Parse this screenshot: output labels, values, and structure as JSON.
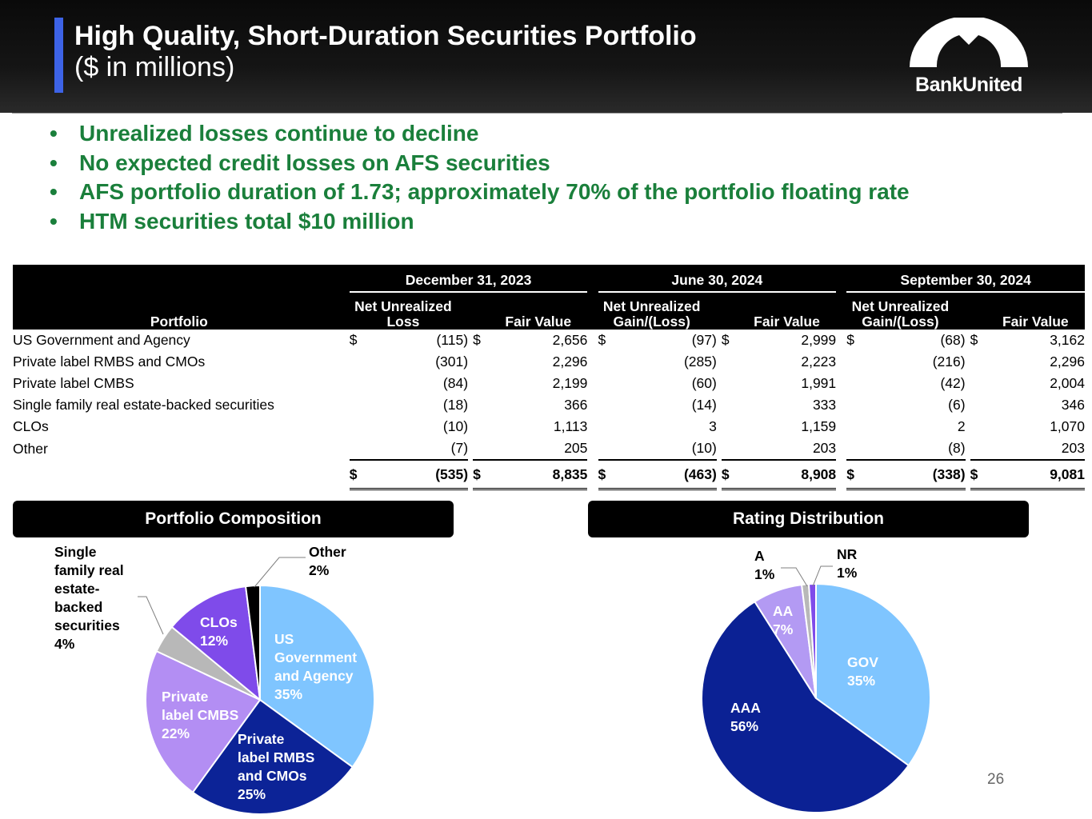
{
  "header": {
    "title": "High Quality, Short-Duration Securities Portfolio",
    "subtitle": "($ in millions)",
    "logo_text": "BankUnited"
  },
  "bullets": [
    "Unrealized losses continue to decline",
    "No expected credit losses on AFS securities",
    "AFS portfolio duration of 1.73; approximately 70% of the portfolio floating rate",
    "HTM securities total $10 million"
  ],
  "bullet_symbol": "•",
  "table": {
    "portfolio_header": "Portfolio",
    "periods": [
      "December 31, 2023",
      "June 30, 2024",
      "September 30, 2024"
    ],
    "sub_headers": {
      "dec_unrealized": "Net Unrealized Loss",
      "gain_loss": "Net Unrealized Gain/(Loss)",
      "fair_value": "Fair Value"
    },
    "dollar_sign": "$",
    "rows": [
      {
        "label": "US Government and Agency",
        "values": [
          "(115)",
          "2,656",
          "(97)",
          "2,999",
          "(68)",
          "3,162"
        ]
      },
      {
        "label": "Private label RMBS and CMOs",
        "values": [
          "(301)",
          "2,296",
          "(285)",
          "2,223",
          "(216)",
          "2,296"
        ]
      },
      {
        "label": "Private label CMBS",
        "values": [
          "(84)",
          "2,199",
          "(60)",
          "1,991",
          "(42)",
          "2,004"
        ]
      },
      {
        "label": "Single family real estate-backed securities",
        "values": [
          "(18)",
          "366",
          "(14)",
          "333",
          "(6)",
          "346"
        ]
      },
      {
        "label": "CLOs",
        "values": [
          "(10)",
          "1,113",
          "3",
          "1,159",
          "2",
          "1,070"
        ]
      },
      {
        "label": "Other",
        "values": [
          "(7)",
          "205",
          "(10)",
          "203",
          "(8)",
          "203"
        ]
      }
    ],
    "totals": [
      "(535)",
      "8,835",
      "(463)",
      "8,908",
      "(338)",
      "9,081"
    ]
  },
  "panels": {
    "composition_title": "Portfolio Composition",
    "rating_title": "Rating Distribution"
  },
  "chart_data": [
    {
      "type": "pie",
      "title": "Portfolio Composition",
      "categories": [
        "US Government and Agency",
        "Private label RMBS and CMOs",
        "Private label CMBS",
        "Single family real estate-backed securities",
        "CLOs",
        "Other"
      ],
      "values": [
        35,
        25,
        22,
        4,
        12,
        2
      ],
      "unit": "%",
      "colors": [
        "#7fc5ff",
        "#0c2397",
        "#b38ef3",
        "#b8b8b8",
        "#7f4bea",
        "#000000"
      ],
      "labels": [
        {
          "lines": [
            "US",
            "Government",
            "and Agency",
            "35%"
          ],
          "color": "#ffffff"
        },
        {
          "lines": [
            "Private",
            "label RMBS",
            "and CMOs",
            "25%"
          ],
          "color": "#ffffff"
        },
        {
          "lines": [
            "Private",
            "label CMBS",
            "22%"
          ],
          "color": "#ffffff"
        },
        {
          "lines": [
            "Single",
            "family real",
            "estate-",
            "backed",
            "securities",
            "4%"
          ],
          "color": "#000000"
        },
        {
          "lines": [
            "CLOs",
            "12%"
          ],
          "color": "#ffffff"
        },
        {
          "lines": [
            "Other",
            "2%"
          ],
          "color": "#000000"
        }
      ]
    },
    {
      "type": "pie",
      "title": "Rating Distribution",
      "categories": [
        "GOV",
        "AAA",
        "AA",
        "A",
        "NR"
      ],
      "values": [
        35,
        56,
        7,
        1,
        1
      ],
      "unit": "%",
      "colors": [
        "#7fc5ff",
        "#0b2194",
        "#b39af3",
        "#b8b8b8",
        "#7f4bea"
      ],
      "labels": [
        {
          "lines": [
            "GOV",
            "35%"
          ],
          "color": "#ffffff"
        },
        {
          "lines": [
            "AAA",
            "56%"
          ],
          "color": "#ffffff"
        },
        {
          "lines": [
            "AA",
            "7%"
          ],
          "color": "#ffffff"
        },
        {
          "lines": [
            "A",
            "1%"
          ],
          "color": "#000000"
        },
        {
          "lines": [
            "NR",
            "1%"
          ],
          "color": "#000000"
        }
      ]
    }
  ],
  "page_number": "26"
}
